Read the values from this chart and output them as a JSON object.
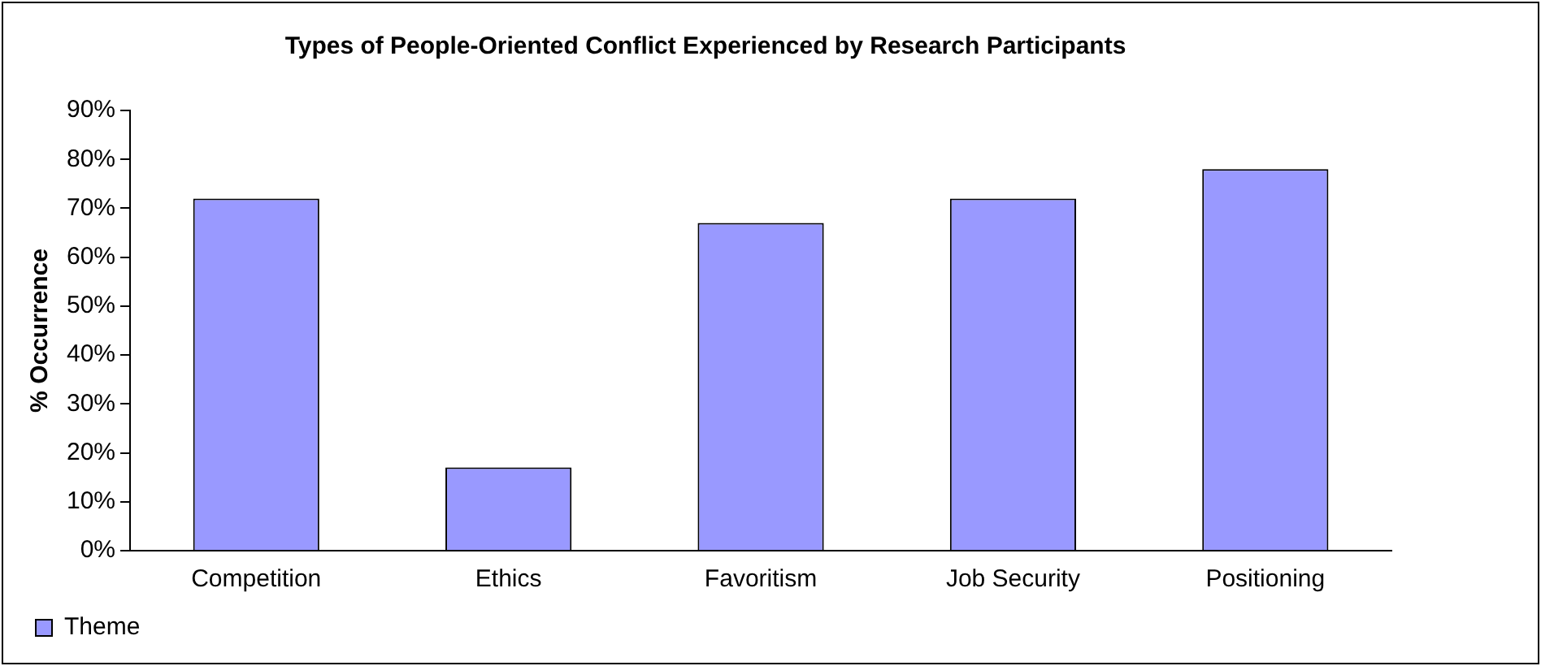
{
  "chart_data": {
    "type": "bar",
    "title": "Types of People-Oriented Conflict Experienced by Research Participants",
    "ylabel": "% Occurrence",
    "categories": [
      "Competition",
      "Ethics",
      "Favoritism",
      "Job Security",
      "Positioning"
    ],
    "series": [
      {
        "name": "Theme",
        "color": "#9999ff",
        "values": [
          72,
          17,
          67,
          72,
          78
        ]
      }
    ],
    "ylim": [
      0,
      90
    ],
    "yticks": [
      {
        "value": 0,
        "label": "0%"
      },
      {
        "value": 10,
        "label": "10%"
      },
      {
        "value": 20,
        "label": "20%"
      },
      {
        "value": 30,
        "label": "30%"
      },
      {
        "value": 40,
        "label": "40%"
      },
      {
        "value": 50,
        "label": "50%"
      },
      {
        "value": 60,
        "label": "60%"
      },
      {
        "value": 70,
        "label": "70%"
      },
      {
        "value": 80,
        "label": "80%"
      },
      {
        "value": 90,
        "label": "90%"
      }
    ],
    "grid": false,
    "legend": "bottom left"
  }
}
